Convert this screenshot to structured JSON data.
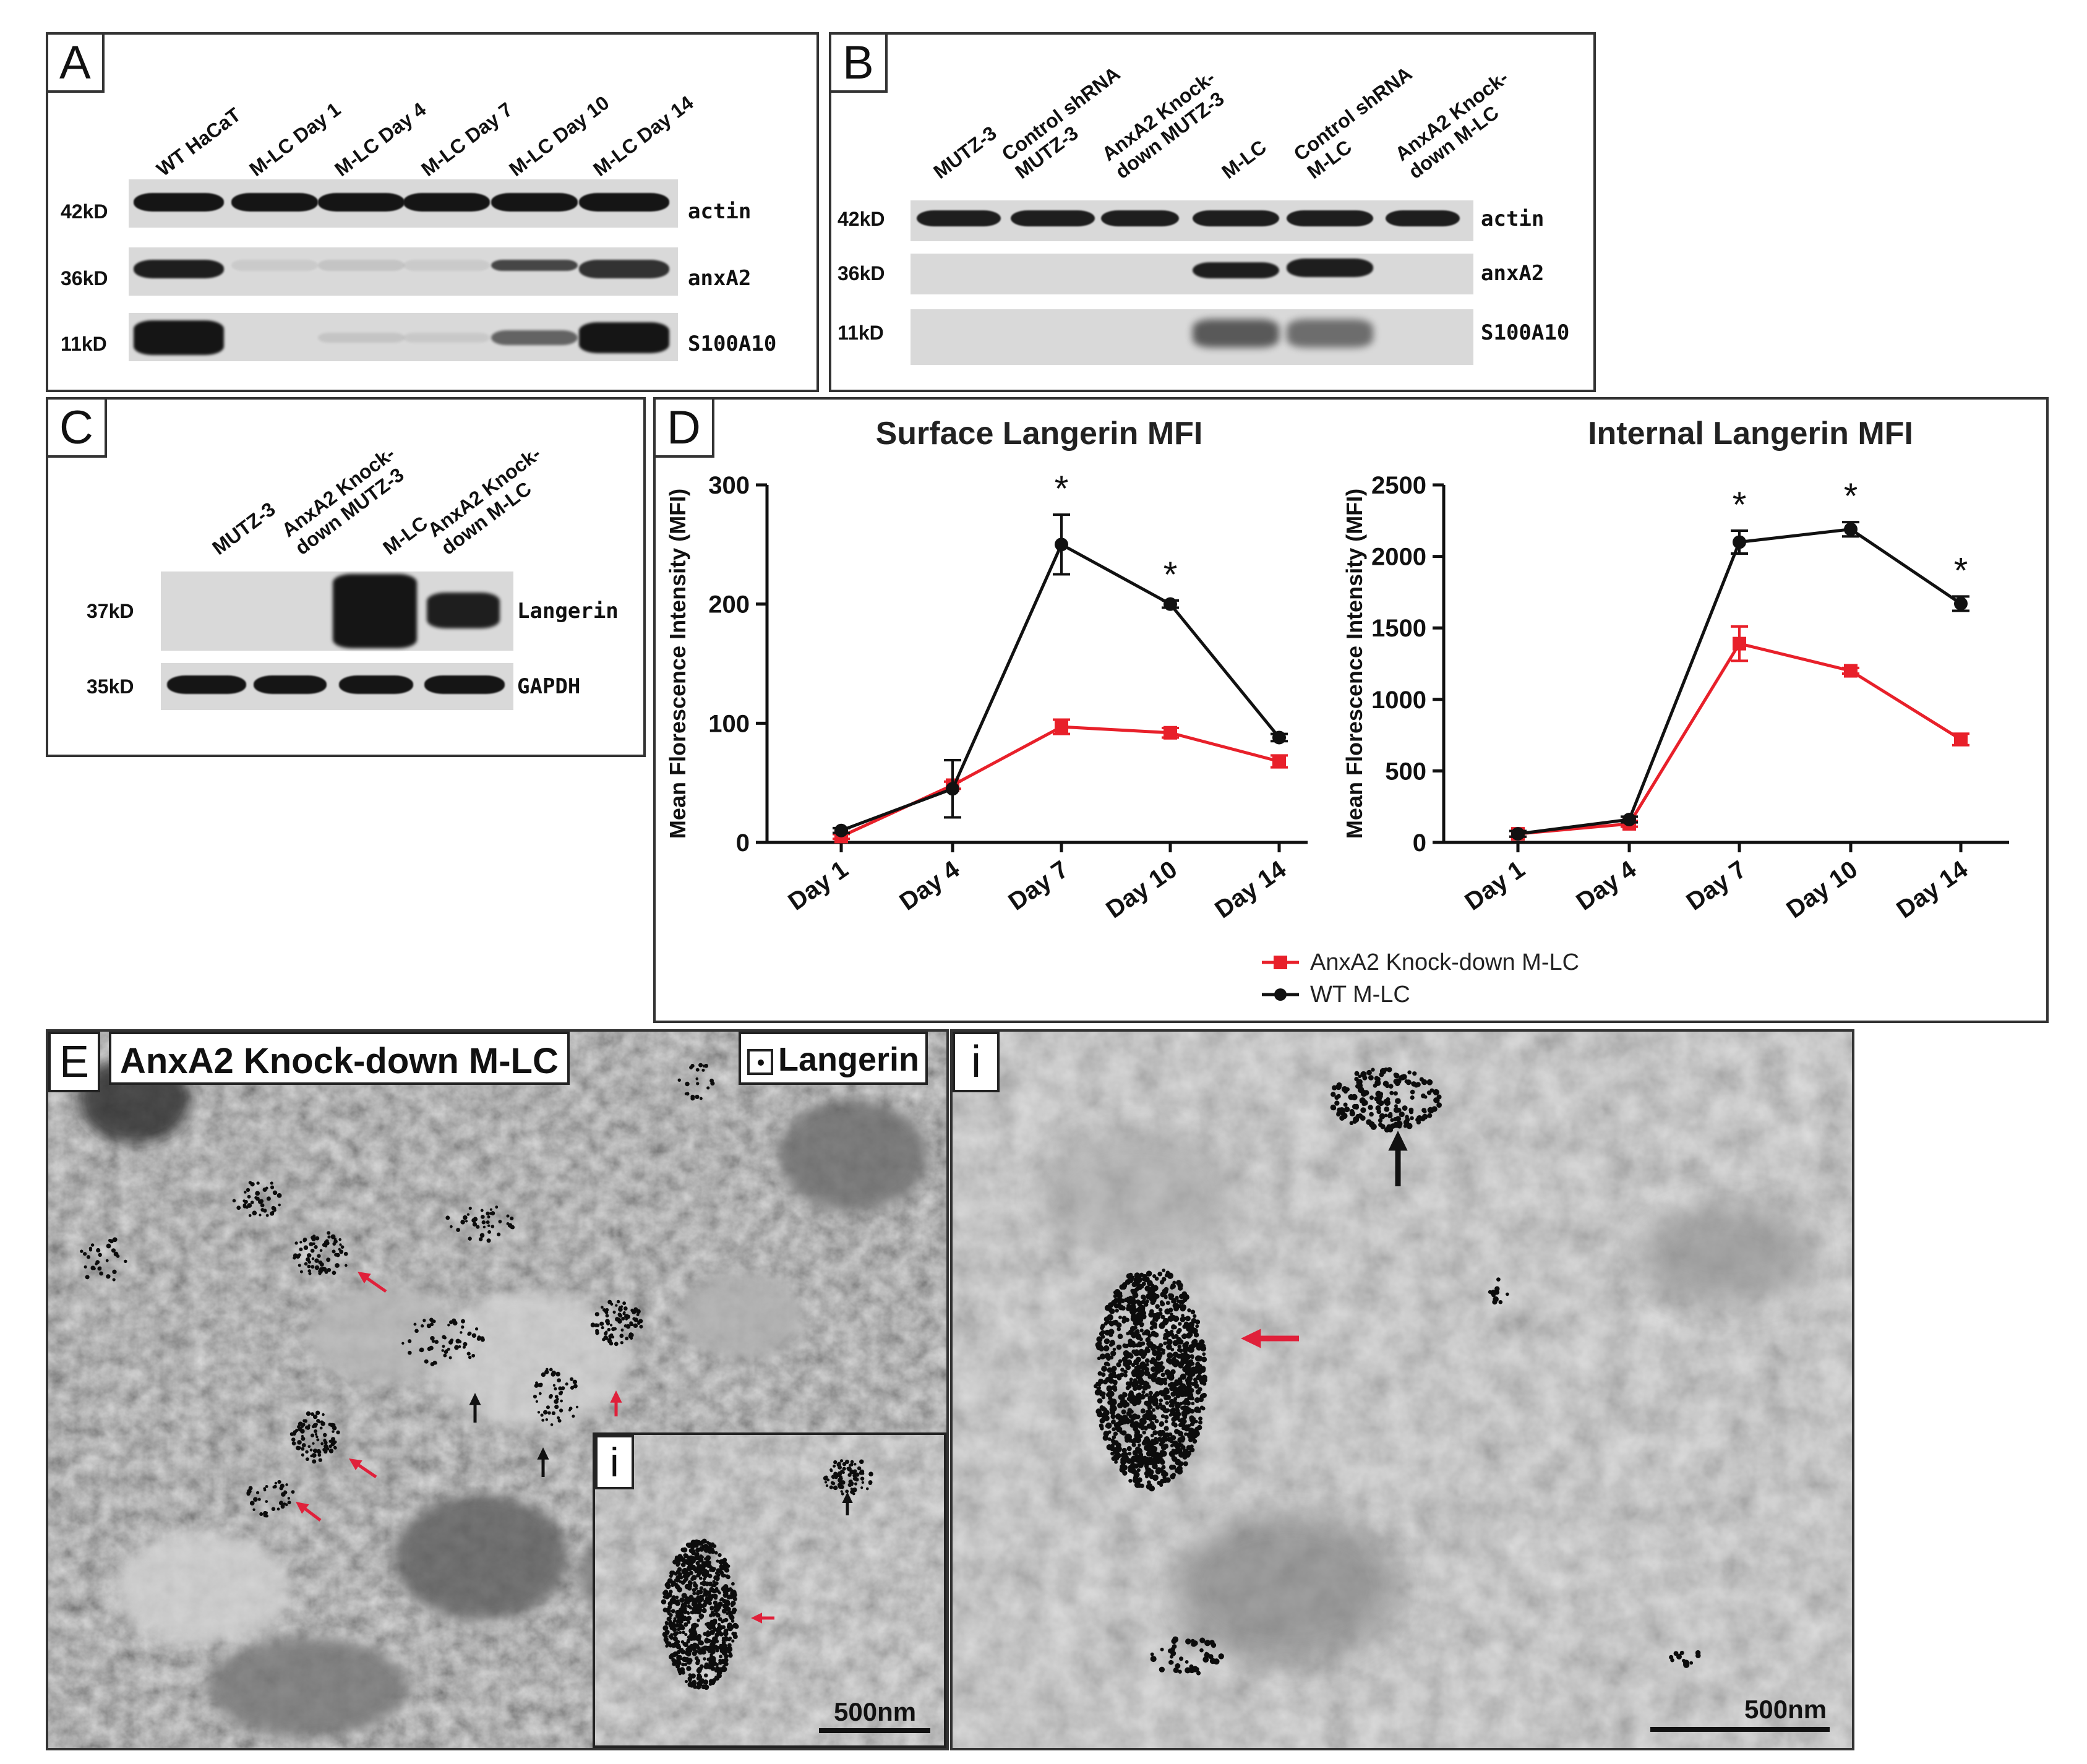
{
  "panels": {
    "A": {
      "label": "A",
      "lanes": [
        "WT HaCaT",
        "M-LC Day 1",
        "M-LC Day 4",
        "M-LC Day 7",
        "M-LC Day 10",
        "M-LC Day 14"
      ],
      "rows": [
        {
          "kd": "42kD",
          "name": "actin"
        },
        {
          "kd": "36kD",
          "name": "anxA2"
        },
        {
          "kd": "11kD",
          "name": "S100A10"
        }
      ]
    },
    "B": {
      "label": "B",
      "lanes": [
        "MUTZ-3",
        "Control shRNA|MUTZ-3",
        "AnxA2 Knock-|down MUTZ-3",
        "M-LC",
        "Control shRNA|M-LC",
        "AnxA2 Knock-|down M-LC"
      ],
      "rows": [
        {
          "kd": "42kD",
          "name": "actin"
        },
        {
          "kd": "36kD",
          "name": "anxA2"
        },
        {
          "kd": "11kD",
          "name": "S100A10"
        }
      ]
    },
    "C": {
      "label": "C",
      "lanes": [
        "MUTZ-3",
        "AnxA2 Knock-|down MUTZ-3",
        "M-LC",
        "AnxA2 Knock-|down M-LC"
      ],
      "rows": [
        {
          "kd": "37kD",
          "name": "Langerin"
        },
        {
          "kd": "35kD",
          "name": "GAPDH"
        }
      ]
    },
    "D": {
      "label": "D"
    },
    "E": {
      "label": "E",
      "title": "AnxA2 Knock-down M-LC",
      "legend": "Langerin",
      "inset_label": "i",
      "scale": "500nm"
    },
    "Ei": {
      "label": "i",
      "scale": "500nm"
    }
  },
  "chart_data": [
    {
      "type": "line",
      "title": "Surface Langerin MFI",
      "xlabel": "",
      "ylabel": "Mean Florescence Intensity (MFI)",
      "categories": [
        "Day 1",
        "Day 4",
        "Day 7",
        "Day 10",
        "Day 14"
      ],
      "ylim": [
        0,
        300
      ],
      "yticks": [
        0,
        100,
        200,
        300
      ],
      "series": [
        {
          "name": "AnxA2 Knock-down M-LC",
          "color": "#e8202a",
          "values": [
            5,
            48,
            97,
            92,
            68
          ],
          "errors": [
            2,
            3,
            6,
            4,
            5
          ]
        },
        {
          "name": "WT M-LC",
          "color": "#111111",
          "values": [
            10,
            45,
            250,
            200,
            88
          ],
          "errors": [
            2,
            24,
            25,
            3,
            3
          ]
        }
      ],
      "significance": [
        "",
        "",
        "*",
        "*",
        ""
      ]
    },
    {
      "type": "line",
      "title": "Internal Langerin MFI",
      "xlabel": "",
      "ylabel": "Mean Florescence Intensity (MFI)",
      "categories": [
        "Day 1",
        "Day 4",
        "Day 7",
        "Day 10",
        "Day 14"
      ],
      "ylim": [
        0,
        2500
      ],
      "yticks": [
        0,
        500,
        1000,
        1500,
        2000,
        2500
      ],
      "series": [
        {
          "name": "AnxA2 Knock-down M-LC",
          "color": "#e8202a",
          "values": [
            60,
            130,
            1390,
            1200,
            720
          ],
          "errors": [
            20,
            20,
            120,
            20,
            40
          ]
        },
        {
          "name": "WT M-LC",
          "color": "#111111",
          "values": [
            60,
            160,
            2100,
            2190,
            1670
          ],
          "errors": [
            20,
            20,
            80,
            50,
            50
          ]
        }
      ],
      "significance": [
        "",
        "",
        "*",
        "*",
        "*"
      ]
    }
  ]
}
